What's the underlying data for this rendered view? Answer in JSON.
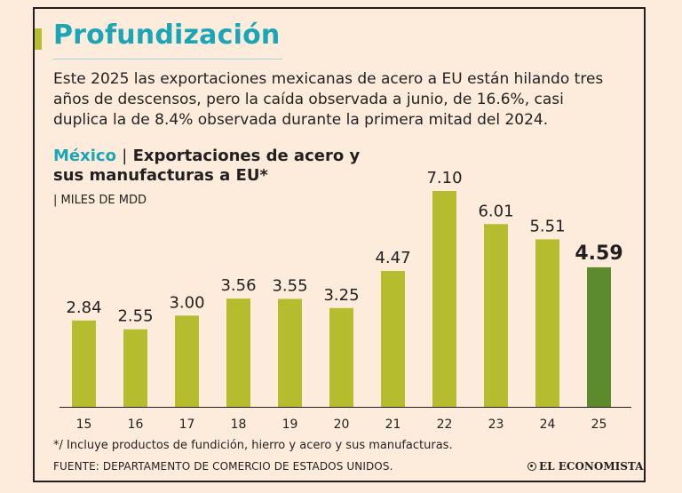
{
  "header": {
    "title": "Profundización"
  },
  "intro": {
    "text": "Este 2025 las exportaciones mexicanas de acero a EU están hilando tres años de descensos, pero la caída observada a junio, de 16.6%, casi duplica la de 8.4% observada durante la primera mitad del 2024."
  },
  "chart_title": {
    "country": "México",
    "separator": "|",
    "title": "Exportaciones de acero y sus manufacturas a EU*",
    "unit": "| MILES DE MDD"
  },
  "footnote": "*/ Incluye productos de fundición, hierro y acero y sus manufacturas.",
  "source": "FUENTE: DEPARTAMENTO DE COMERCIO DE ESTADOS UNIDOS.",
  "brand": "EL ECONOMISTA",
  "colors": {
    "bar": "#b5bd2e",
    "bar_highlight": "#5c8a2c",
    "accent": "#1aa6b7",
    "background": "#fdecdc"
  },
  "chart_data": {
    "type": "bar",
    "categories": [
      "15",
      "16",
      "17",
      "18",
      "19",
      "20",
      "21",
      "22",
      "23",
      "24",
      "25"
    ],
    "values": [
      2.84,
      2.55,
      3.0,
      3.56,
      3.55,
      3.25,
      4.47,
      7.1,
      6.01,
      5.51,
      4.59
    ],
    "value_labels": [
      "2.84",
      "2.55",
      "3.00",
      "3.56",
      "3.55",
      "3.25",
      "4.47",
      "7.10",
      "6.01",
      "5.51",
      "4.59"
    ],
    "highlight_index": 10,
    "ylim": [
      0,
      7.1
    ],
    "grid": false,
    "legend": "none"
  }
}
